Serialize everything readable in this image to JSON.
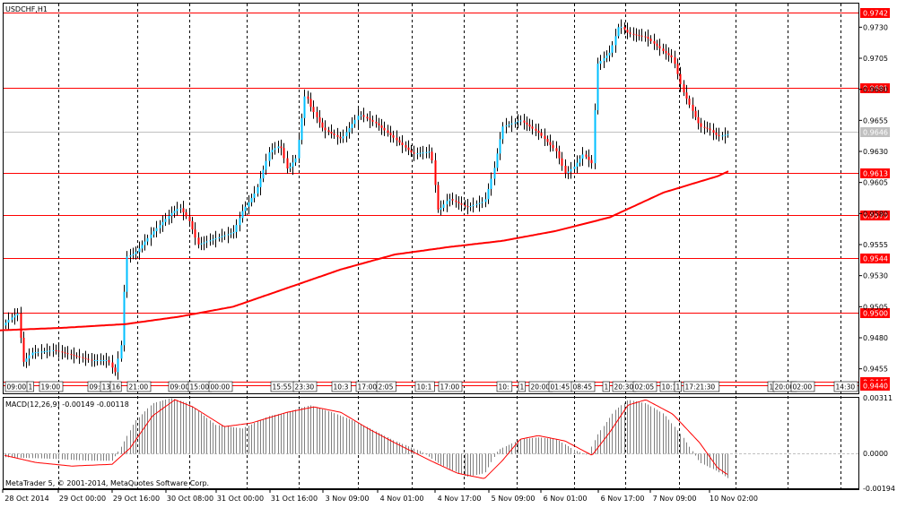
{
  "chart_data": {
    "type": "candlestick",
    "title": "USDCHF,H1",
    "price_axis": {
      "ylim": [
        0.9436,
        0.9749
      ],
      "ticks": [
        "0.9730",
        "0.9705",
        "0.9680",
        "0.9655",
        "0.9630",
        "0.9605",
        "0.9580",
        "0.9555",
        "0.9530",
        "0.9505",
        "0.9480",
        "0.9455"
      ]
    },
    "current_price": "0.9646",
    "level_lines": [
      "0.9742",
      "0.9681",
      "0.9613",
      "0.9579",
      "0.9544",
      "0.9500",
      "0.9445",
      "0.9440"
    ],
    "moving_average_y": [
      [
        0,
        0.9486
      ],
      [
        70,
        0.9488
      ],
      [
        140,
        0.9491
      ],
      [
        200,
        0.9497
      ],
      [
        260,
        0.9505
      ],
      [
        320,
        0.952
      ],
      [
        380,
        0.9535
      ],
      [
        440,
        0.9547
      ],
      [
        500,
        0.9553
      ],
      [
        560,
        0.9558
      ],
      [
        620,
        0.9566
      ],
      [
        680,
        0.9577
      ],
      [
        740,
        0.9597
      ],
      [
        800,
        0.961
      ],
      [
        812,
        0.9614
      ]
    ],
    "price_path": [
      [
        0,
        0.9488
      ],
      [
        10,
        0.9495
      ],
      [
        20,
        0.95
      ],
      [
        25,
        0.946
      ],
      [
        35,
        0.9468
      ],
      [
        60,
        0.947
      ],
      [
        100,
        0.9462
      ],
      [
        120,
        0.9462
      ],
      [
        128,
        0.9452
      ],
      [
        135,
        0.9475
      ],
      [
        140,
        0.9545
      ],
      [
        150,
        0.9548
      ],
      [
        170,
        0.9565
      ],
      [
        190,
        0.958
      ],
      [
        200,
        0.9585
      ],
      [
        210,
        0.9575
      ],
      [
        220,
        0.9555
      ],
      [
        240,
        0.956
      ],
      [
        260,
        0.9565
      ],
      [
        270,
        0.9582
      ],
      [
        285,
        0.9598
      ],
      [
        300,
        0.963
      ],
      [
        312,
        0.9635
      ],
      [
        320,
        0.9615
      ],
      [
        330,
        0.9625
      ],
      [
        340,
        0.9678
      ],
      [
        345,
        0.9667
      ],
      [
        360,
        0.9648
      ],
      [
        380,
        0.964
      ],
      [
        400,
        0.966
      ],
      [
        420,
        0.9652
      ],
      [
        440,
        0.964
      ],
      [
        460,
        0.9628
      ],
      [
        480,
        0.963
      ],
      [
        488,
        0.9582
      ],
      [
        500,
        0.9592
      ],
      [
        520,
        0.9585
      ],
      [
        540,
        0.959
      ],
      [
        550,
        0.9615
      ],
      [
        560,
        0.965
      ],
      [
        580,
        0.9655
      ],
      [
        600,
        0.9645
      ],
      [
        620,
        0.963
      ],
      [
        630,
        0.9612
      ],
      [
        640,
        0.9618
      ],
      [
        650,
        0.9628
      ],
      [
        660,
        0.962
      ],
      [
        665,
        0.97
      ],
      [
        680,
        0.971
      ],
      [
        690,
        0.9732
      ],
      [
        700,
        0.9725
      ],
      [
        720,
        0.9722
      ],
      [
        740,
        0.971
      ],
      [
        750,
        0.9705
      ],
      [
        760,
        0.968
      ],
      [
        770,
        0.9665
      ],
      [
        780,
        0.965
      ],
      [
        790,
        0.9648
      ],
      [
        800,
        0.9642
      ],
      [
        812,
        0.9644
      ]
    ],
    "time_labels": [
      {
        "x": 30,
        "label": "28 Oct 2014"
      },
      {
        "x": 92,
        "label": "29 Oct 00:00"
      },
      {
        "x": 152,
        "label": "29 Oct 16:00"
      },
      {
        "x": 212,
        "label": "30 Oct 08:00"
      },
      {
        "x": 268,
        "label": "31 Oct 00:00"
      },
      {
        "x": 328,
        "label": "31 Oct 16:00"
      },
      {
        "x": 387,
        "label": "3 Nov 09:00"
      },
      {
        "x": 448,
        "label": "4 Nov 01:00"
      },
      {
        "x": 512,
        "label": "4 Nov 17:00"
      },
      {
        "x": 572,
        "label": "5 Nov 09:00"
      },
      {
        "x": 630,
        "label": "6 Nov 01:00"
      },
      {
        "x": 694,
        "label": "6 Nov 17:00"
      },
      {
        "x": 752,
        "label": "7 Nov 09:00"
      },
      {
        "x": 818,
        "label": "10 Nov 02:00"
      }
    ],
    "vertical_separators_x": [
      65,
      153,
      211,
      275,
      333,
      399,
      459,
      517,
      576,
      640,
      697,
      757,
      820,
      878,
      937
    ],
    "session_tags": [
      {
        "x": 6,
        "label": "09:00"
      },
      {
        "x": 30,
        "label": "1"
      },
      {
        "x": 44,
        "label": "19:00"
      },
      {
        "x": 98,
        "label": "09:00"
      },
      {
        "x": 112,
        "label": "13"
      },
      {
        "x": 123,
        "label": "16"
      },
      {
        "x": 142,
        "label": "21:00"
      },
      {
        "x": 188,
        "label": "09:00"
      },
      {
        "x": 210,
        "label": "15:00"
      },
      {
        "x": 233,
        "label": "00:00"
      },
      {
        "x": 302,
        "label": "15:55"
      },
      {
        "x": 327,
        "label": "23:30"
      },
      {
        "x": 370,
        "label": "10:3"
      },
      {
        "x": 397,
        "label": "17:00"
      },
      {
        "x": 420,
        "label": "2:05"
      },
      {
        "x": 463,
        "label": "10:1"
      },
      {
        "x": 489,
        "label": "17:00"
      },
      {
        "x": 554,
        "label": "10:"
      },
      {
        "x": 578,
        "label": "1"
      },
      {
        "x": 590,
        "label": "20:00"
      },
      {
        "x": 612,
        "label": "01:45"
      },
      {
        "x": 637,
        "label": "08:45"
      },
      {
        "x": 672,
        "label": "1"
      },
      {
        "x": 683,
        "label": "20:30"
      },
      {
        "x": 706,
        "label": "02:05"
      },
      {
        "x": 736,
        "label": "10:1"
      },
      {
        "x": 752,
        "label": "1"
      },
      {
        "x": 762,
        "label": "17:21:30"
      },
      {
        "x": 856,
        "label": "1"
      },
      {
        "x": 862,
        "label": "20:00"
      },
      {
        "x": 882,
        "label": "02:00"
      },
      {
        "x": 930,
        "label": "14:30"
      }
    ],
    "macd": {
      "label": "MACD(12,26,9) -0.00149 -0.00118",
      "ylim": [
        -0.00194,
        0.00311
      ],
      "ticks": [
        "0.00311",
        "0.0000",
        "-0.00194"
      ],
      "histogram_path": [
        [
          5,
          -0.0002
        ],
        [
          60,
          -0.0003
        ],
        [
          100,
          -0.0004
        ],
        [
          125,
          -0.0004
        ],
        [
          135,
          0.0004
        ],
        [
          150,
          0.0018
        ],
        [
          170,
          0.0028
        ],
        [
          190,
          0.0031
        ],
        [
          210,
          0.0028
        ],
        [
          240,
          0.0016
        ],
        [
          270,
          0.0014
        ],
        [
          300,
          0.0021
        ],
        [
          320,
          0.0023
        ],
        [
          345,
          0.0027
        ],
        [
          370,
          0.0023
        ],
        [
          400,
          0.0017
        ],
        [
          440,
          0.0007
        ],
        [
          470,
          0.0001
        ],
        [
          490,
          -0.0006
        ],
        [
          520,
          -0.0013
        ],
        [
          540,
          -0.0011
        ],
        [
          555,
          0.0002
        ],
        [
          580,
          0.0008
        ],
        [
          600,
          0.0009
        ],
        [
          620,
          0.0008
        ],
        [
          640,
          0.0002
        ],
        [
          655,
          -0.0001
        ],
        [
          665,
          0.001
        ],
        [
          685,
          0.0024
        ],
        [
          700,
          0.003
        ],
        [
          720,
          0.0028
        ],
        [
          740,
          0.0022
        ],
        [
          760,
          0.001
        ],
        [
          780,
          -0.0005
        ],
        [
          800,
          -0.001
        ],
        [
          812,
          -0.0014
        ]
      ],
      "signal_path": [
        [
          5,
          -0.0001
        ],
        [
          40,
          -0.0005
        ],
        [
          80,
          -0.0007
        ],
        [
          125,
          -0.0006
        ],
        [
          145,
          0.0003
        ],
        [
          170,
          0.0021
        ],
        [
          195,
          0.003
        ],
        [
          215,
          0.0026
        ],
        [
          250,
          0.0015
        ],
        [
          280,
          0.0017
        ],
        [
          320,
          0.0023
        ],
        [
          350,
          0.0026
        ],
        [
          380,
          0.0023
        ],
        [
          410,
          0.0014
        ],
        [
          440,
          0.0006
        ],
        [
          480,
          -0.0004
        ],
        [
          510,
          -0.0011
        ],
        [
          540,
          -0.0014
        ],
        [
          560,
          -0.0004
        ],
        [
          580,
          0.0008
        ],
        [
          600,
          0.001
        ],
        [
          630,
          0.0007
        ],
        [
          660,
          -0.0001
        ],
        [
          680,
          0.0012
        ],
        [
          700,
          0.0027
        ],
        [
          720,
          0.003
        ],
        [
          750,
          0.0022
        ],
        [
          780,
          0.0006
        ],
        [
          800,
          -0.0008
        ],
        [
          812,
          -0.0012
        ]
      ]
    },
    "footer": "MetaTrader 5, © 2001-2014, MetaQuotes Software Corp."
  }
}
